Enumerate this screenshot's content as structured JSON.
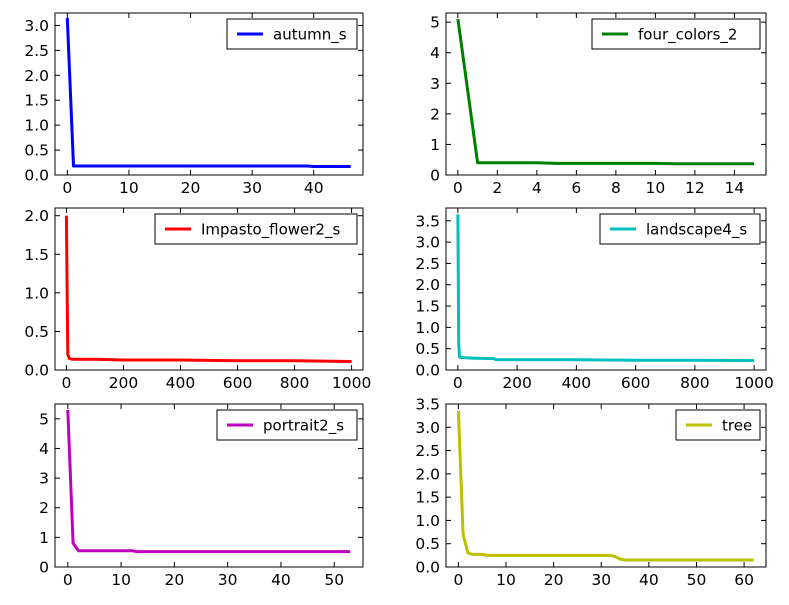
{
  "chart_data": [
    {
      "type": "line",
      "series": [
        {
          "name": "autumn_s",
          "color": "#0000ff",
          "x": [
            0,
            1,
            2,
            10,
            20,
            30,
            39,
            40,
            46
          ],
          "y": [
            3.15,
            0.18,
            0.18,
            0.18,
            0.18,
            0.18,
            0.18,
            0.17,
            0.17
          ]
        }
      ],
      "xlim": [
        -2,
        48
      ],
      "ylim": [
        0,
        3.25
      ],
      "xticks": [
        0,
        10,
        20,
        30,
        40
      ],
      "xtick_labels": [
        "0",
        "10",
        "20",
        "30",
        "40"
      ],
      "yticks": [
        0,
        0.5,
        1.0,
        1.5,
        2.0,
        2.5,
        3.0
      ],
      "ytick_labels": [
        "0.0",
        "0.5",
        "1.0",
        "1.5",
        "2.0",
        "2.5",
        "3.0"
      ],
      "legend": "top-right"
    },
    {
      "type": "line",
      "series": [
        {
          "name": "four_colors_2",
          "color": "#008000",
          "x": [
            0,
            1,
            2,
            3,
            4,
            5,
            6,
            7,
            8,
            9,
            10,
            11,
            12,
            13,
            14,
            15
          ],
          "y": [
            5.1,
            0.4,
            0.4,
            0.4,
            0.4,
            0.38,
            0.38,
            0.38,
            0.38,
            0.38,
            0.38,
            0.37,
            0.37,
            0.37,
            0.37,
            0.37
          ]
        }
      ],
      "xlim": [
        -0.6,
        15.6
      ],
      "ylim": [
        0,
        5.3
      ],
      "xticks": [
        0,
        2,
        4,
        6,
        8,
        10,
        12,
        14
      ],
      "xtick_labels": [
        "0",
        "2",
        "4",
        "6",
        "8",
        "10",
        "12",
        "14"
      ],
      "yticks": [
        0,
        1,
        2,
        3,
        4,
        5
      ],
      "ytick_labels": [
        "0",
        "1",
        "2",
        "3",
        "4",
        "5"
      ],
      "legend": "top-right"
    },
    {
      "type": "line",
      "series": [
        {
          "name": "Impasto_flower2_s",
          "color": "#ff0000",
          "x": [
            0,
            2,
            5,
            10,
            20,
            50,
            100,
            200,
            400,
            600,
            800,
            1000
          ],
          "y": [
            2.0,
            1.2,
            0.2,
            0.15,
            0.14,
            0.14,
            0.14,
            0.13,
            0.13,
            0.12,
            0.12,
            0.11
          ]
        }
      ],
      "xlim": [
        -40,
        1040
      ],
      "ylim": [
        0,
        2.1
      ],
      "xticks": [
        0,
        200,
        400,
        600,
        800,
        1000
      ],
      "xtick_labels": [
        "0",
        "200",
        "400",
        "600",
        "800",
        "1000"
      ],
      "yticks": [
        0,
        0.5,
        1.0,
        1.5,
        2.0
      ],
      "ytick_labels": [
        "0.0",
        "0.5",
        "1.0",
        "1.5",
        "2.0"
      ],
      "legend": "top-right"
    },
    {
      "type": "line",
      "series": [
        {
          "name": "landscape4_s",
          "color": "#00bfbf",
          "x": [
            0,
            3,
            6,
            10,
            20,
            50,
            100,
            120,
            130,
            200,
            400,
            600,
            800,
            1000
          ],
          "y": [
            3.65,
            0.6,
            0.3,
            0.29,
            0.29,
            0.28,
            0.27,
            0.27,
            0.24,
            0.24,
            0.24,
            0.23,
            0.23,
            0.22
          ]
        }
      ],
      "xlim": [
        -40,
        1040
      ],
      "ylim": [
        0,
        3.8
      ],
      "xticks": [
        0,
        200,
        400,
        600,
        800,
        1000
      ],
      "xtick_labels": [
        "0",
        "200",
        "400",
        "600",
        "800",
        "1000"
      ],
      "yticks": [
        0,
        0.5,
        1.0,
        1.5,
        2.0,
        2.5,
        3.0,
        3.5
      ],
      "ytick_labels": [
        "0.0",
        "0.5",
        "1.0",
        "1.5",
        "2.0",
        "2.5",
        "3.0",
        "3.5"
      ],
      "legend": "top-right"
    },
    {
      "type": "line",
      "series": [
        {
          "name": "portrait2_s",
          "color": "#bf00bf",
          "x": [
            0,
            1,
            2,
            5,
            10,
            12,
            13,
            20,
            30,
            40,
            50,
            53
          ],
          "y": [
            5.3,
            0.8,
            0.55,
            0.55,
            0.55,
            0.55,
            0.52,
            0.52,
            0.52,
            0.52,
            0.52,
            0.52
          ]
        }
      ],
      "xlim": [
        -2.4,
        55.4
      ],
      "ylim": [
        0,
        5.5
      ],
      "xticks": [
        0,
        10,
        20,
        30,
        40,
        50
      ],
      "xtick_labels": [
        "0",
        "10",
        "20",
        "30",
        "40",
        "50"
      ],
      "yticks": [
        0,
        1,
        2,
        3,
        4,
        5
      ],
      "ytick_labels": [
        "0",
        "1",
        "2",
        "3",
        "4",
        "5"
      ],
      "legend": "top-right"
    },
    {
      "type": "line",
      "series": [
        {
          "name": "tree",
          "color": "#bfbf00",
          "x": [
            0,
            1,
            2,
            3,
            4,
            5,
            6,
            8,
            10,
            20,
            30,
            32,
            33,
            34,
            35,
            40,
            50,
            62
          ],
          "y": [
            3.35,
            0.7,
            0.3,
            0.27,
            0.27,
            0.27,
            0.25,
            0.25,
            0.25,
            0.25,
            0.25,
            0.25,
            0.22,
            0.17,
            0.15,
            0.15,
            0.15,
            0.15
          ]
        }
      ],
      "xlim": [
        -2.6,
        64.6
      ],
      "ylim": [
        0,
        3.5
      ],
      "xticks": [
        0,
        10,
        20,
        30,
        40,
        50,
        60
      ],
      "xtick_labels": [
        "0",
        "10",
        "20",
        "30",
        "40",
        "50",
        "60"
      ],
      "yticks": [
        0,
        0.5,
        1.0,
        1.5,
        2.0,
        2.5,
        3.0,
        3.5
      ],
      "ytick_labels": [
        "0.0",
        "0.5",
        "1.0",
        "1.5",
        "2.0",
        "2.5",
        "3.0",
        "3.5"
      ],
      "legend": "top-right"
    }
  ]
}
